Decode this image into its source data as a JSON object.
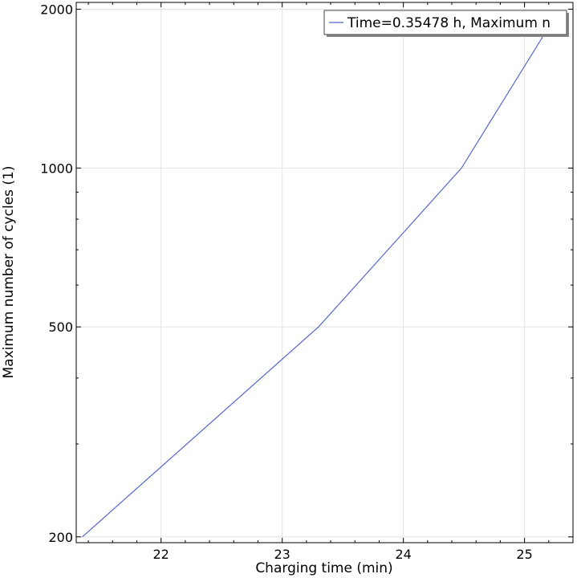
{
  "chart_data": {
    "type": "line",
    "xlabel": "Charging time (min)",
    "ylabel": "Maximum number of cycles (1)",
    "x_scale": "linear",
    "y_scale": "log",
    "xlim": [
      21.3,
      25.4
    ],
    "ylim": [
      195,
      2060
    ],
    "x_ticks": [
      22,
      23,
      24,
      25
    ],
    "x_tick_labels": [
      "22",
      "23",
      "24",
      "25"
    ],
    "y_ticks": [
      200,
      500,
      1000,
      2000
    ],
    "y_tick_labels": [
      "200",
      "500",
      "1000",
      "2000"
    ],
    "grid": true,
    "legend_position": "top-right",
    "series": [
      {
        "name": "Time=0.35478 h, Maximum n",
        "color": "#5566cc",
        "x": [
          21.35,
          23.3,
          24.48,
          25.2
        ],
        "y": [
          200,
          500,
          1000,
          1850
        ]
      }
    ]
  }
}
